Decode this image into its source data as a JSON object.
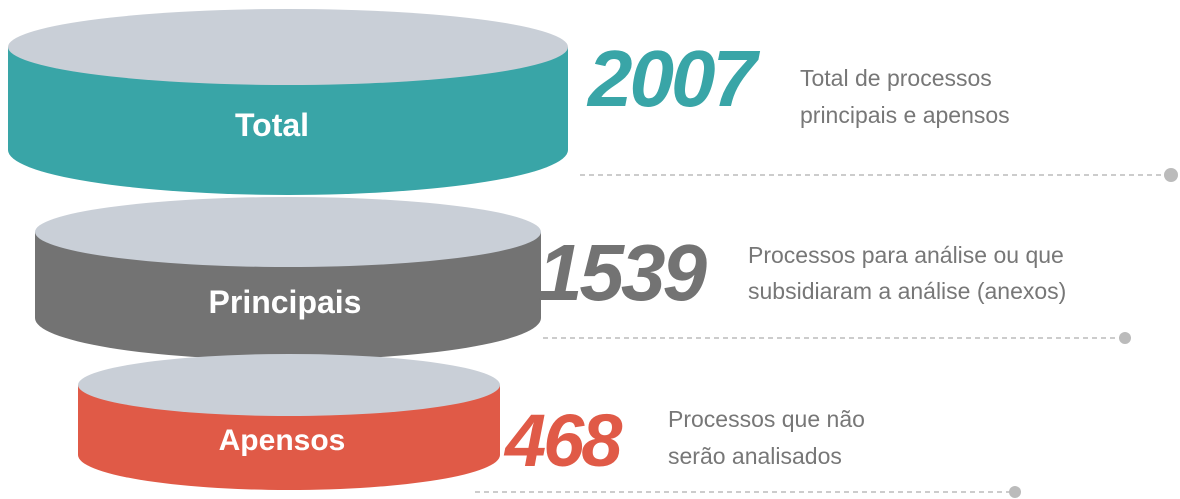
{
  "tiers": [
    {
      "label": "Total",
      "number": "2007",
      "description": [
        "Total de processos",
        "principais e apensos"
      ]
    },
    {
      "label": "Principais",
      "number": "1539",
      "description": [
        "Processos para análise ou que",
        "subsidiaram a análise (anexos)"
      ]
    },
    {
      "label": "Apensos",
      "number": "468",
      "description": [
        "Processos que não",
        "serão analisados"
      ]
    }
  ]
}
